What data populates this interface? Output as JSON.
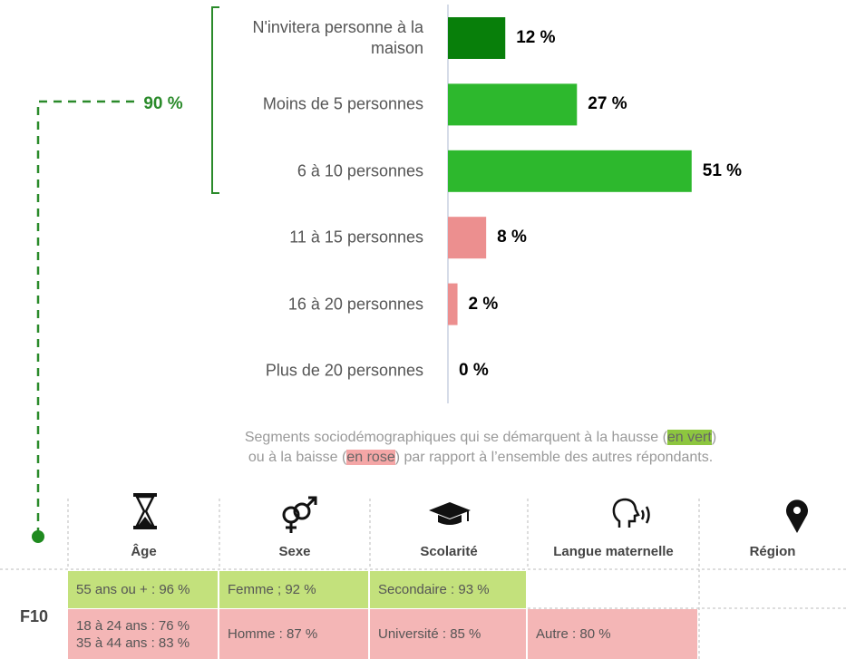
{
  "chart_data": {
    "type": "bar",
    "orientation": "horizontal",
    "categories": [
      "N'invitera personne à la maison",
      "Moins de 5 personnes",
      "6 à 10 personnes",
      "11 à 15 personnes",
      "16 à 20 personnes",
      "Plus de 20 personnes"
    ],
    "values": [
      12,
      27,
      51,
      8,
      2,
      0
    ],
    "value_labels": [
      "12 %",
      "27 %",
      "51 %",
      "8 %",
      "2 %",
      "0 %"
    ],
    "colors": [
      "#087f0a",
      "#2db82d",
      "#2db82d",
      "#ec8f8f",
      "#ec8f8f",
      "#ec8f8f"
    ],
    "xlim": [
      0,
      100
    ],
    "annotation": "90 %"
  },
  "note": {
    "line1": "Segments sociodémographiques qui se démarquent à la hausse (",
    "green": "en vert",
    "line1_end": ")",
    "line2": "ou à la baisse (",
    "pink": "en rose",
    "line2_end": ") par rapport à l’ensemble des autres répondants."
  },
  "table": {
    "columns": [
      "Âge",
      "Sexe",
      "Scolarité",
      "Langue maternelle",
      "Région"
    ],
    "row_label": "F10",
    "rows": [
      {
        "color": "#c3e17c",
        "cells": [
          "55 ans ou + : 96 %",
          "Femme ; 92 %",
          "Secondaire : 93 %"
        ]
      },
      {
        "color": "#f4b6b6",
        "cells": [
          [
            "18 à 24 ans : 76 %",
            "35 à 44 ans : 83 %"
          ],
          "Homme : 87 %",
          "Université : 85 %",
          "Autre : 80 %"
        ]
      }
    ]
  }
}
